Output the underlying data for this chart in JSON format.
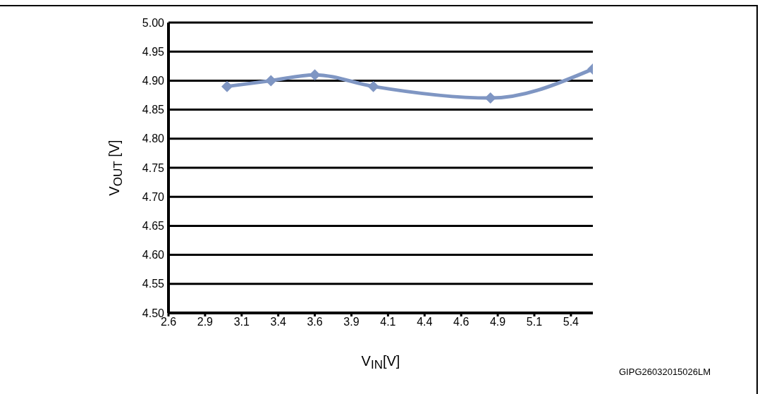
{
  "chart_data": {
    "type": "line",
    "xlabel": "V$_{IN}$[V]",
    "ylabel": "V$_{OUT}$ [V]",
    "annotations": [
      "GIPG26032015026LM"
    ],
    "x": [
      3.0,
      3.3,
      3.6,
      4.0,
      4.8,
      5.5
    ],
    "series": [
      {
        "color": "#7f96c3",
        "values": [
          4.89,
          4.9,
          4.91,
          4.89,
          4.87,
          4.92
        ]
      }
    ],
    "xlim": [
      2.6,
      5.5
    ],
    "xticks": [
      2.6,
      {
        "value": 2.85,
        "label": "2.9"
      },
      3.1,
      {
        "value": 3.35,
        "label": "3.4"
      },
      3.6,
      {
        "value": 3.85,
        "label": "3.9"
      },
      4.1,
      {
        "value": 4.35,
        "label": "4.4"
      },
      4.6,
      {
        "value": 4.85,
        "label": "4.9"
      },
      5.1,
      {
        "value": 5.35,
        "label": "5.4"
      }
    ],
    "ylim": [
      4.5,
      5.0
    ],
    "yticks": [
      {
        "value": 4.5,
        "label": "4.50"
      },
      {
        "value": 4.55,
        "label": "4.55"
      },
      {
        "value": 4.6,
        "label": "4.60"
      },
      {
        "value": 4.65,
        "label": "4.65"
      },
      {
        "value": 4.7,
        "label": "4.70"
      },
      {
        "value": 4.75,
        "label": "4.75"
      },
      {
        "value": 4.8,
        "label": "4.80"
      },
      {
        "value": 4.85,
        "label": "4.85"
      },
      {
        "value": 4.9,
        "label": "4.90"
      },
      {
        "value": 4.95,
        "label": "4.95"
      },
      {
        "value": 5.0,
        "label": "5.00"
      }
    ],
    "grid": "y",
    "marker": "diamond",
    "line_style": "solid"
  }
}
